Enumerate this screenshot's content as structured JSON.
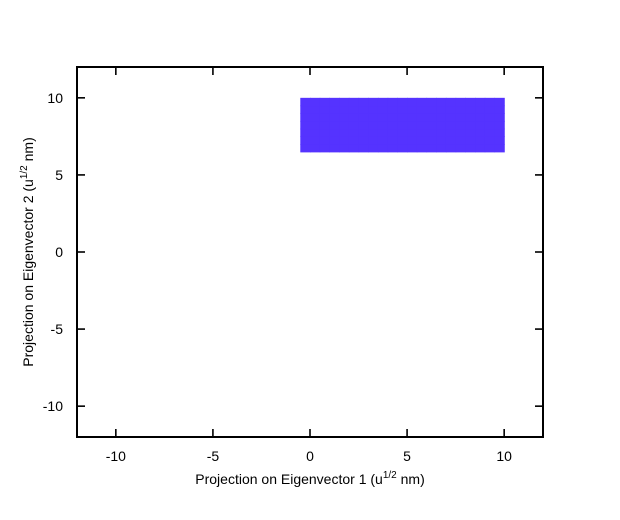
{
  "chart_data": {
    "type": "heatmap",
    "title": "",
    "xlabel": "Projection on Eigenvector 1 (u",
    "xlabel_sup": "1/2",
    "xlabel_end": " nm)",
    "ylabel": "Projection on Eigenvector 2 (u",
    "ylabel_sup": "1/2",
    "ylabel_end": " nm)",
    "xlim": [
      -12,
      12
    ],
    "ylim": [
      -12,
      12
    ],
    "xticks": [
      -10,
      -5,
      0,
      5,
      10
    ],
    "yticks": [
      -10,
      -5,
      0,
      5,
      10
    ],
    "grid": false,
    "legend": "none",
    "bin_size": 0.5,
    "colormap": [
      "#8000ff",
      "#5533ff",
      "#2a80f5",
      "#00c0e8",
      "#50f0c8",
      "#c0f0a0",
      "#ffb070",
      "#ff5030"
    ],
    "z": [
      [
        -0.5,
        6.5,
        1
      ],
      [
        0,
        6.5,
        1
      ],
      [
        0.5,
        6.5,
        1
      ],
      [
        1,
        6.5,
        1
      ],
      [
        1.5,
        6.5,
        1
      ],
      [
        2,
        6.5,
        1
      ],
      [
        2.5,
        6.5,
        1
      ],
      [
        3,
        6.5,
        1
      ],
      [
        3.5,
        6.5,
        1
      ],
      [
        4,
        6.5,
        1
      ],
      [
        4.5,
        6.5,
        1
      ],
      [
        5,
        6.5,
        1
      ],
      [
        5.5,
        6.5,
        1
      ],
      [
        6,
        6.5,
        1
      ],
      [
        6.5,
        6.5,
        1
      ],
      [
        7,
        6.5,
        1
      ],
      [
        7.5,
        6.5,
        1
      ],
      [
        8,
        6.5,
        1
      ],
      [
        8.5,
        6.5,
        1
      ],
      [
        9,
        6.5,
        1
      ],
      [
        9.5,
        6.5,
        1
      ],
      [
        -0.5,
        7,
        1
      ],
      [
        0,
        7,
        1
      ],
      [
        0.5,
        7,
        1
      ],
      [
        1,
        7,
        1
      ],
      [
        1.5,
        7,
        1
      ],
      [
        2,
        7,
        1
      ],
      [
        2.5,
        7,
        1
      ],
      [
        3,
        7,
        1
      ],
      [
        3.5,
        7,
        1
      ],
      [
        4,
        7,
        1
      ],
      [
        4.5,
        7,
        1
      ],
      [
        5,
        7,
        1
      ],
      [
        5.5,
        7,
        1
      ],
      [
        6,
        7,
        1
      ],
      [
        6.5,
        7,
        1
      ],
      [
        7,
        7,
        1
      ],
      [
        7.5,
        7,
        1
      ],
      [
        8,
        7,
        1
      ],
      [
        8.5,
        7,
        1
      ],
      [
        9,
        7,
        1
      ],
      [
        9.5,
        7,
        1
      ],
      [
        -0.5,
        7.5,
        1
      ],
      [
        0,
        7.5,
        1
      ],
      [
        0.5,
        7.5,
        1
      ],
      [
        1,
        7.5,
        1
      ],
      [
        1.5,
        7.5,
        1
      ],
      [
        2,
        7.5,
        1
      ],
      [
        2.5,
        7.5,
        1
      ],
      [
        3,
        7.5,
        1
      ],
      [
        3.5,
        7.5,
        1
      ],
      [
        4,
        7.5,
        1
      ],
      [
        4.5,
        7.5,
        1
      ],
      [
        5,
        7.5,
        1
      ],
      [
        5.5,
        7.5,
        1
      ],
      [
        6,
        7.5,
        1
      ],
      [
        6.5,
        7.5,
        1
      ],
      [
        7,
        7.5,
        1
      ],
      [
        7.5,
        7.5,
        1
      ],
      [
        8,
        7.5,
        1
      ],
      [
        8.5,
        7.5,
        1
      ],
      [
        9,
        7.5,
        1
      ],
      [
        9.5,
        7.5,
        1
      ],
      [
        -0.5,
        8,
        1
      ],
      [
        0,
        8,
        1
      ],
      [
        0.5,
        8,
        1
      ],
      [
        1,
        8,
        1
      ],
      [
        1.5,
        8,
        1
      ],
      [
        2,
        8,
        1
      ],
      [
        2.5,
        8,
        1
      ],
      [
        3,
        8,
        1
      ],
      [
        3.5,
        8,
        1
      ],
      [
        4,
        8,
        1
      ],
      [
        4.5,
        8,
        1
      ],
      [
        5,
        8,
        1
      ],
      [
        5.5,
        8,
        1
      ],
      [
        6,
        8,
        1
      ],
      [
        6.5,
        8,
        1
      ],
      [
        7,
        8,
        1
      ],
      [
        7.5,
        8,
        1
      ],
      [
        8,
        8,
        1
      ],
      [
        8.5,
        8,
        1
      ],
      [
        9,
        8,
        1
      ],
      [
        9.5,
        8,
        1
      ],
      [
        -0.5,
        8.5,
        1
      ],
      [
        0,
        8.5,
        1
      ],
      [
        0.5,
        8.5,
        1
      ],
      [
        1,
        8.5,
        1
      ],
      [
        1.5,
        8.5,
        1
      ],
      [
        2,
        8.5,
        1
      ],
      [
        2.5,
        8.5,
        1
      ],
      [
        3,
        8.5,
        1
      ],
      [
        3.5,
        8.5,
        1
      ],
      [
        4,
        8.5,
        1
      ],
      [
        4.5,
        8.5,
        1
      ],
      [
        5,
        8.5,
        1
      ],
      [
        5.5,
        8.5,
        1
      ],
      [
        6,
        8.5,
        1
      ],
      [
        6.5,
        8.5,
        1
      ],
      [
        7,
        8.5,
        1
      ],
      [
        7.5,
        8.5,
        1
      ],
      [
        8,
        8.5,
        1
      ],
      [
        8.5,
        8.5,
        1
      ],
      [
        9,
        8.5,
        1
      ],
      [
        9.5,
        8.5,
        1
      ],
      [
        -0.5,
        9,
        1
      ],
      [
        0,
        9,
        1
      ],
      [
        0.5,
        9,
        1
      ],
      [
        1,
        9,
        1
      ],
      [
        1.5,
        9,
        1
      ],
      [
        2,
        9,
        1
      ],
      [
        2.5,
        9,
        1
      ],
      [
        3,
        9,
        1
      ],
      [
        3.5,
        9,
        1
      ],
      [
        4,
        9,
        1
      ],
      [
        4.5,
        9,
        1
      ],
      [
        5,
        9,
        1
      ],
      [
        5.5,
        9,
        1
      ],
      [
        6,
        9,
        1
      ],
      [
        6.5,
        9,
        1
      ],
      [
        7,
        9,
        1
      ],
      [
        7.5,
        9,
        1
      ],
      [
        8,
        9,
        1
      ],
      [
        8.5,
        9,
        1
      ],
      [
        9,
        9,
        1
      ],
      [
        9.5,
        9,
        1
      ],
      [
        -0.5,
        9.5,
        1
      ],
      [
        0,
        9.5,
        1
      ],
      [
        0.5,
        9.5,
        1
      ],
      [
        1,
        9.5,
        1
      ],
      [
        1.5,
        9.5,
        1
      ],
      [
        2,
        9.5,
        1
      ],
      [
        2.5,
        9.5,
        1
      ],
      [
        3,
        9.5,
        1
      ],
      [
        3.5,
        9.5,
        1
      ],
      [
        4,
        9.5,
        1
      ],
      [
        4.5,
        9.5,
        1
      ],
      [
        5,
        9.5,
        1
      ],
      [
        5.5,
        9.5,
        1
      ],
      [
        6,
        9.5,
        1
      ],
      [
        6.5,
        9.5,
        1
      ],
      [
        7,
        9.5,
        1
      ],
      [
        7.5,
        9.5,
        1
      ],
      [
        8,
        9.5,
        1
      ],
      [
        8.5,
        9.5,
        1
      ],
      [
        9,
        9.5,
        1
      ],
      [
        9.5,
        9.5,
        1
      ]
    ]
  }
}
